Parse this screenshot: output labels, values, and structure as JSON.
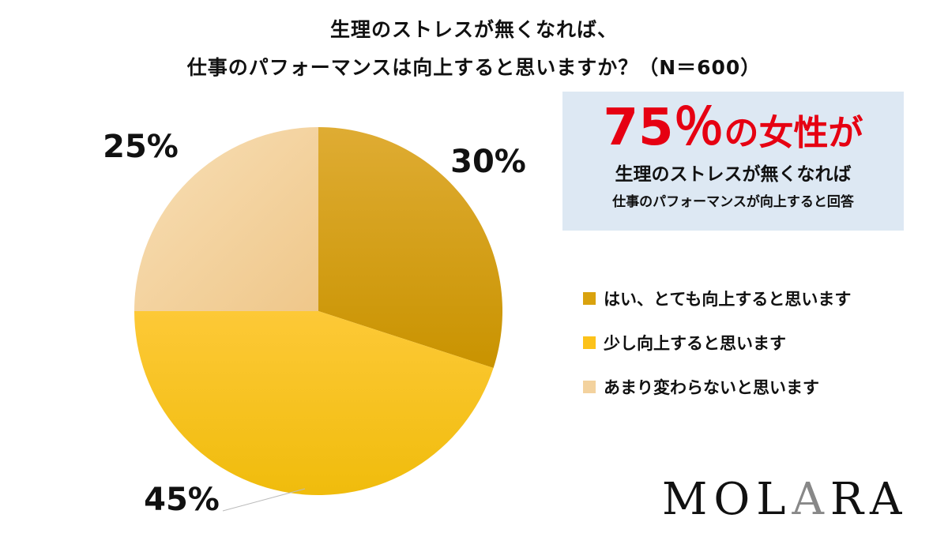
{
  "chart_data": {
    "type": "pie",
    "title": "生理のストレスが無くなれば、",
    "subtitle": "仕事のパフォーマンスは向上すると思いますか？（N＝600）",
    "categories": [
      "はい、とても向上すると思います",
      "少し向上すると思います",
      "あまり変わらないと思います"
    ],
    "values": [
      30,
      45,
      25
    ],
    "labels": [
      "30%",
      "45%",
      "25%"
    ],
    "colors": [
      "#d9a20e",
      "#fcc21a",
      "#f3d29e"
    ],
    "legend_position": "right"
  },
  "callout": {
    "big_num": "75％",
    "big_text": "の女性が",
    "line2": "生理のストレスが無くなれば",
    "line3": "仕事のパフォーマンスが向上すると回答"
  },
  "logo": "MOLARA"
}
